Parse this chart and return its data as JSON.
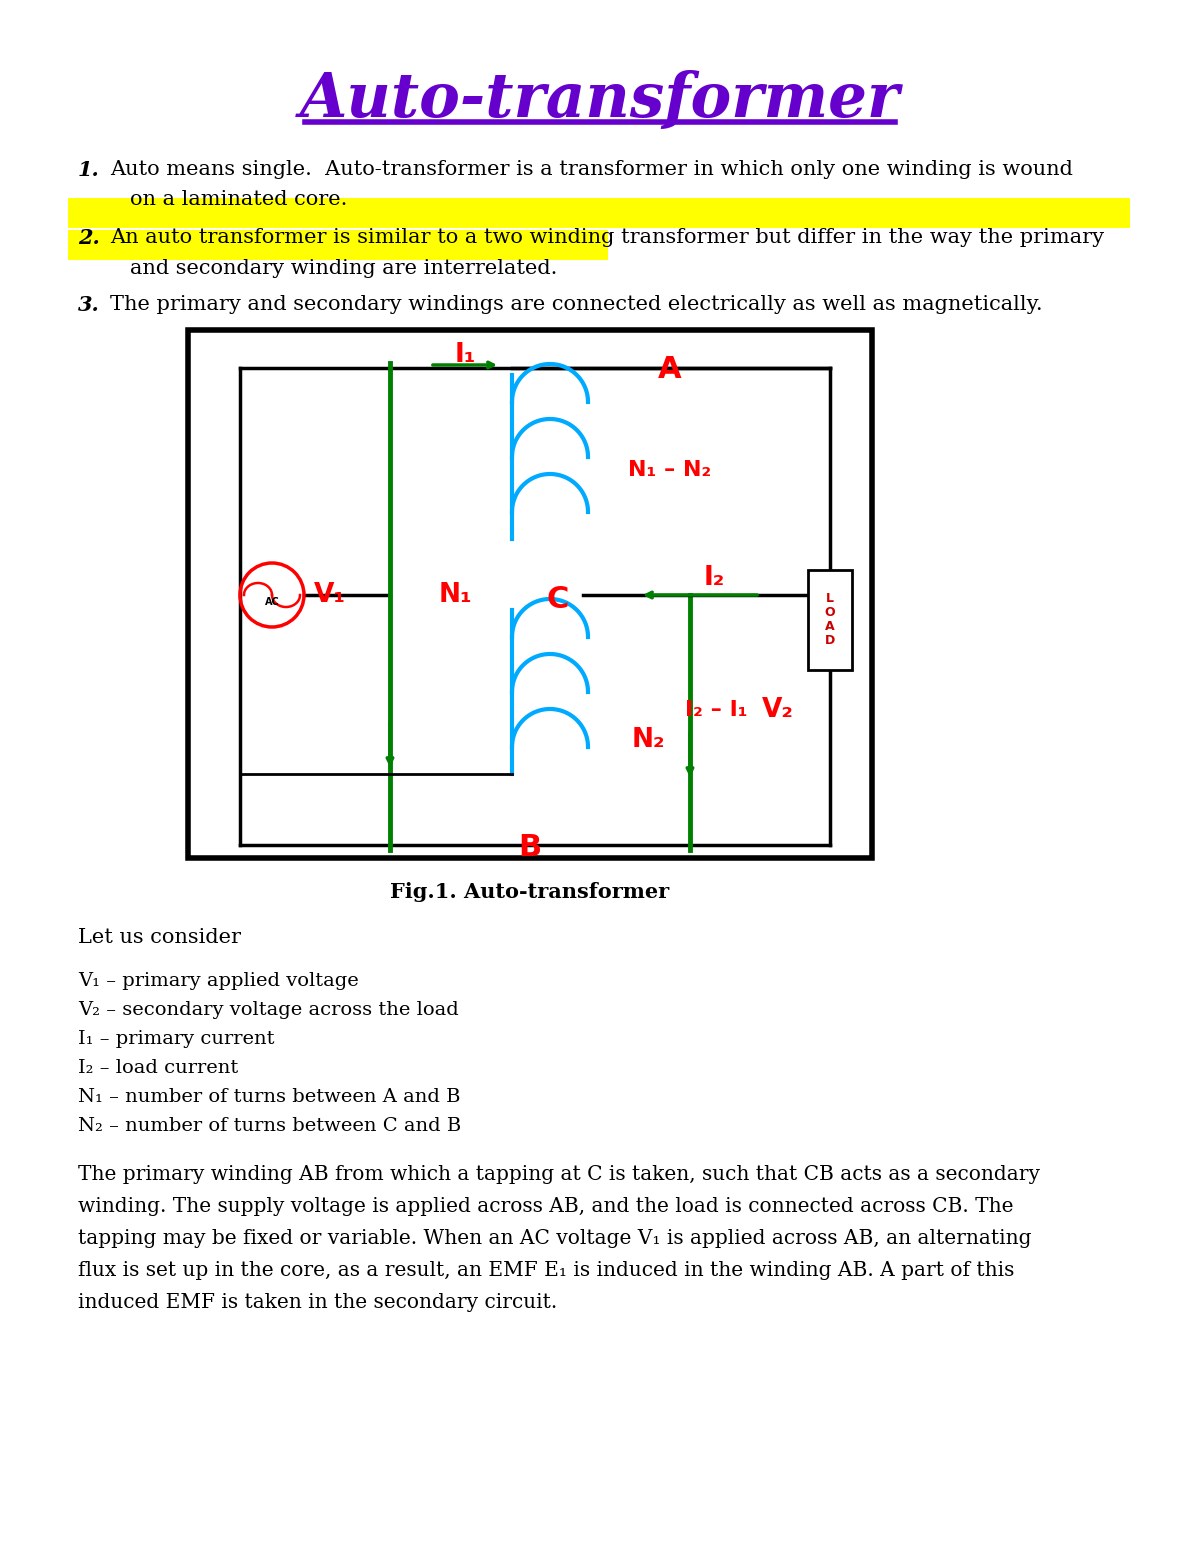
{
  "title": "Auto-transformer",
  "title_color": "#6600CC",
  "title_underline_color": "#6600CC",
  "bg_color": "#FFFFFF",
  "item2_highlight": "#FFFF00",
  "fig_caption": "Fig.1. Auto-transformer",
  "let_us_consider": "Let us consider",
  "def_v1": "V₁ – primary applied voltage",
  "def_v2": "V₂ – secondary voltage across the load",
  "def_i1": "I₁ – primary current",
  "def_i2": "I₂ – load current",
  "def_n1": "N₁ – number of turns between A and B",
  "def_n2": "N₂ – number of turns between C and B",
  "paragraph": "The primary winding AB from which a tapping at C is taken, such that CB acts as a secondary\nwinding. The supply voltage is applied across AB, and the load is connected across CB. The\ntapping may be fixed or variable. When an AC voltage V₁ is applied across AB, an alternating\nflux is set up in the core, as a result, an EMF E₁ is induced in the winding AB. A part of this\ninduced EMF is taken in the secondary circuit."
}
